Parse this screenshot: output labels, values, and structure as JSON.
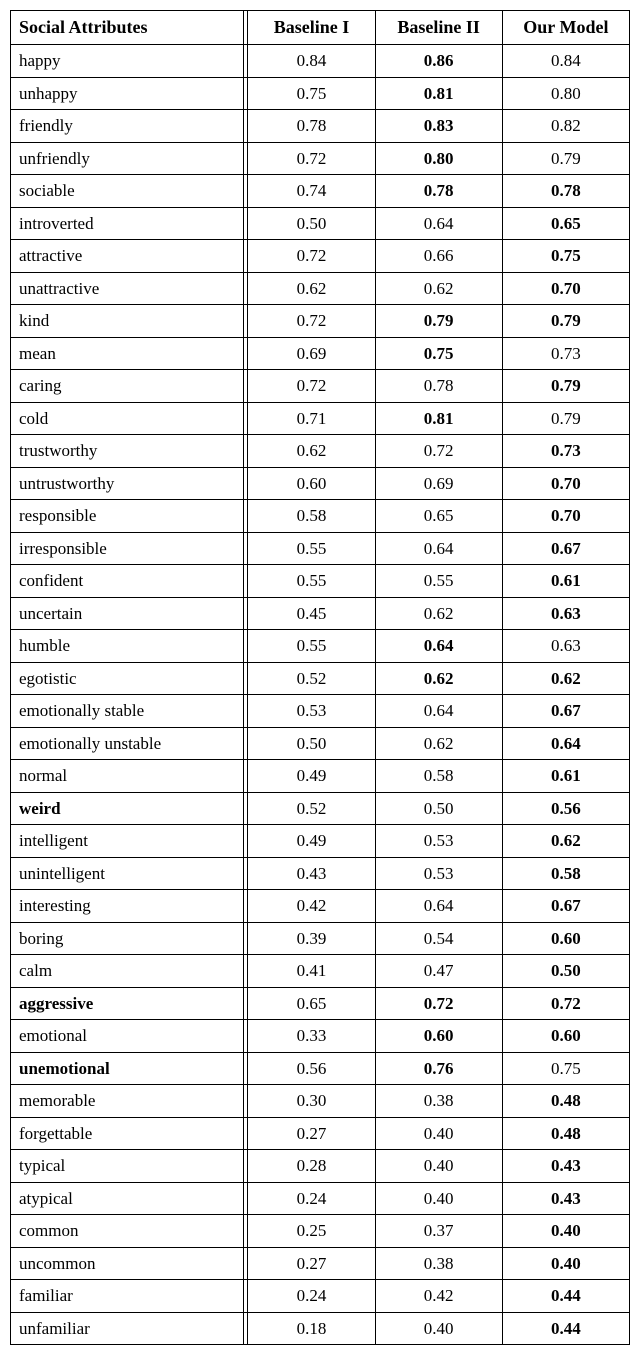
{
  "table": {
    "columns": [
      "Social Attributes",
      "Baseline I",
      "Baseline II",
      "Our Model"
    ],
    "rows": [
      {
        "attr": "happy",
        "attr_bold": false,
        "b1": "0.84",
        "b1_bold": false,
        "b2": "0.86",
        "b2_bold": true,
        "ours": "0.84",
        "ours_bold": false
      },
      {
        "attr": "unhappy",
        "attr_bold": false,
        "b1": "0.75",
        "b1_bold": false,
        "b2": "0.81",
        "b2_bold": true,
        "ours": "0.80",
        "ours_bold": false
      },
      {
        "attr": "friendly",
        "attr_bold": false,
        "b1": "0.78",
        "b1_bold": false,
        "b2": "0.83",
        "b2_bold": true,
        "ours": "0.82",
        "ours_bold": false
      },
      {
        "attr": "unfriendly",
        "attr_bold": false,
        "b1": "0.72",
        "b1_bold": false,
        "b2": "0.80",
        "b2_bold": true,
        "ours": "0.79",
        "ours_bold": false
      },
      {
        "attr": "sociable",
        "attr_bold": false,
        "b1": "0.74",
        "b1_bold": false,
        "b2": "0.78",
        "b2_bold": true,
        "ours": "0.78",
        "ours_bold": true
      },
      {
        "attr": "introverted",
        "attr_bold": false,
        "b1": "0.50",
        "b1_bold": false,
        "b2": "0.64",
        "b2_bold": false,
        "ours": "0.65",
        "ours_bold": true
      },
      {
        "attr": "attractive",
        "attr_bold": false,
        "b1": "0.72",
        "b1_bold": false,
        "b2": "0.66",
        "b2_bold": false,
        "ours": "0.75",
        "ours_bold": true
      },
      {
        "attr": "unattractive",
        "attr_bold": false,
        "b1": "0.62",
        "b1_bold": false,
        "b2": "0.62",
        "b2_bold": false,
        "ours": "0.70",
        "ours_bold": true
      },
      {
        "attr": "kind",
        "attr_bold": false,
        "b1": "0.72",
        "b1_bold": false,
        "b2": "0.79",
        "b2_bold": true,
        "ours": "0.79",
        "ours_bold": true
      },
      {
        "attr": "mean",
        "attr_bold": false,
        "b1": "0.69",
        "b1_bold": false,
        "b2": "0.75",
        "b2_bold": true,
        "ours": "0.73",
        "ours_bold": false
      },
      {
        "attr": "caring",
        "attr_bold": false,
        "b1": "0.72",
        "b1_bold": false,
        "b2": "0.78",
        "b2_bold": false,
        "ours": "0.79",
        "ours_bold": true
      },
      {
        "attr": "cold",
        "attr_bold": false,
        "b1": "0.71",
        "b1_bold": false,
        "b2": "0.81",
        "b2_bold": true,
        "ours": "0.79",
        "ours_bold": false
      },
      {
        "attr": "trustworthy",
        "attr_bold": false,
        "b1": "0.62",
        "b1_bold": false,
        "b2": "0.72",
        "b2_bold": false,
        "ours": "0.73",
        "ours_bold": true
      },
      {
        "attr": "untrustworthy",
        "attr_bold": false,
        "b1": "0.60",
        "b1_bold": false,
        "b2": "0.69",
        "b2_bold": false,
        "ours": "0.70",
        "ours_bold": true
      },
      {
        "attr": "responsible",
        "attr_bold": false,
        "b1": "0.58",
        "b1_bold": false,
        "b2": "0.65",
        "b2_bold": false,
        "ours": "0.70",
        "ours_bold": true
      },
      {
        "attr": "irresponsible",
        "attr_bold": false,
        "b1": "0.55",
        "b1_bold": false,
        "b2": "0.64",
        "b2_bold": false,
        "ours": "0.67",
        "ours_bold": true
      },
      {
        "attr": "confident",
        "attr_bold": false,
        "b1": "0.55",
        "b1_bold": false,
        "b2": "0.55",
        "b2_bold": false,
        "ours": "0.61",
        "ours_bold": true
      },
      {
        "attr": "uncertain",
        "attr_bold": false,
        "b1": "0.45",
        "b1_bold": false,
        "b2": "0.62",
        "b2_bold": false,
        "ours": "0.63",
        "ours_bold": true
      },
      {
        "attr": "humble",
        "attr_bold": false,
        "b1": "0.55",
        "b1_bold": false,
        "b2": "0.64",
        "b2_bold": true,
        "ours": "0.63",
        "ours_bold": false
      },
      {
        "attr": "egotistic",
        "attr_bold": false,
        "b1": "0.52",
        "b1_bold": false,
        "b2": "0.62",
        "b2_bold": true,
        "ours": "0.62",
        "ours_bold": true
      },
      {
        "attr": "emotionally stable",
        "attr_bold": false,
        "b1": "0.53",
        "b1_bold": false,
        "b2": "0.64",
        "b2_bold": false,
        "ours": "0.67",
        "ours_bold": true
      },
      {
        "attr": "emotionally unstable",
        "attr_bold": false,
        "b1": "0.50",
        "b1_bold": false,
        "b2": "0.62",
        "b2_bold": false,
        "ours": "0.64",
        "ours_bold": true
      },
      {
        "attr": "normal",
        "attr_bold": false,
        "b1": "0.49",
        "b1_bold": false,
        "b2": "0.58",
        "b2_bold": false,
        "ours": "0.61",
        "ours_bold": true
      },
      {
        "attr": "weird",
        "attr_bold": true,
        "b1": "0.52",
        "b1_bold": false,
        "b2": "0.50",
        "b2_bold": false,
        "ours": "0.56",
        "ours_bold": true
      },
      {
        "attr": "intelligent",
        "attr_bold": false,
        "b1": "0.49",
        "b1_bold": false,
        "b2": "0.53",
        "b2_bold": false,
        "ours": "0.62",
        "ours_bold": true
      },
      {
        "attr": "unintelligent",
        "attr_bold": false,
        "b1": "0.43",
        "b1_bold": false,
        "b2": "0.53",
        "b2_bold": false,
        "ours": "0.58",
        "ours_bold": true
      },
      {
        "attr": "interesting",
        "attr_bold": false,
        "b1": "0.42",
        "b1_bold": false,
        "b2": "0.64",
        "b2_bold": false,
        "ours": "0.67",
        "ours_bold": true
      },
      {
        "attr": "boring",
        "attr_bold": false,
        "b1": "0.39",
        "b1_bold": false,
        "b2": "0.54",
        "b2_bold": false,
        "ours": "0.60",
        "ours_bold": true
      },
      {
        "attr": "calm",
        "attr_bold": false,
        "b1": "0.41",
        "b1_bold": false,
        "b2": "0.47",
        "b2_bold": false,
        "ours": "0.50",
        "ours_bold": true
      },
      {
        "attr": "aggressive",
        "attr_bold": true,
        "b1": "0.65",
        "b1_bold": false,
        "b2": "0.72",
        "b2_bold": true,
        "ours": "0.72",
        "ours_bold": true
      },
      {
        "attr": "emotional",
        "attr_bold": false,
        "b1": "0.33",
        "b1_bold": false,
        "b2": "0.60",
        "b2_bold": true,
        "ours": "0.60",
        "ours_bold": true
      },
      {
        "attr": "unemotional",
        "attr_bold": true,
        "b1": "0.56",
        "b1_bold": false,
        "b2": "0.76",
        "b2_bold": true,
        "ours": "0.75",
        "ours_bold": false
      },
      {
        "attr": "memorable",
        "attr_bold": false,
        "b1": "0.30",
        "b1_bold": false,
        "b2": "0.38",
        "b2_bold": false,
        "ours": "0.48",
        "ours_bold": true
      },
      {
        "attr": "forgettable",
        "attr_bold": false,
        "b1": "0.27",
        "b1_bold": false,
        "b2": "0.40",
        "b2_bold": false,
        "ours": "0.48",
        "ours_bold": true
      },
      {
        "attr": "typical",
        "attr_bold": false,
        "b1": "0.28",
        "b1_bold": false,
        "b2": "0.40",
        "b2_bold": false,
        "ours": "0.43",
        "ours_bold": true
      },
      {
        "attr": "atypical",
        "attr_bold": false,
        "b1": "0.24",
        "b1_bold": false,
        "b2": "0.40",
        "b2_bold": false,
        "ours": "0.43",
        "ours_bold": true
      },
      {
        "attr": "common",
        "attr_bold": false,
        "b1": "0.25",
        "b1_bold": false,
        "b2": "0.37",
        "b2_bold": false,
        "ours": "0.40",
        "ours_bold": true
      },
      {
        "attr": "uncommon",
        "attr_bold": false,
        "b1": "0.27",
        "b1_bold": false,
        "b2": "0.38",
        "b2_bold": false,
        "ours": "0.40",
        "ours_bold": true
      },
      {
        "attr": "familiar",
        "attr_bold": false,
        "b1": "0.24",
        "b1_bold": false,
        "b2": "0.42",
        "b2_bold": false,
        "ours": "0.44",
        "ours_bold": true
      },
      {
        "attr": "unfamiliar",
        "attr_bold": false,
        "b1": "0.18",
        "b1_bold": false,
        "b2": "0.40",
        "b2_bold": false,
        "ours": "0.44",
        "ours_bold": true
      }
    ]
  }
}
